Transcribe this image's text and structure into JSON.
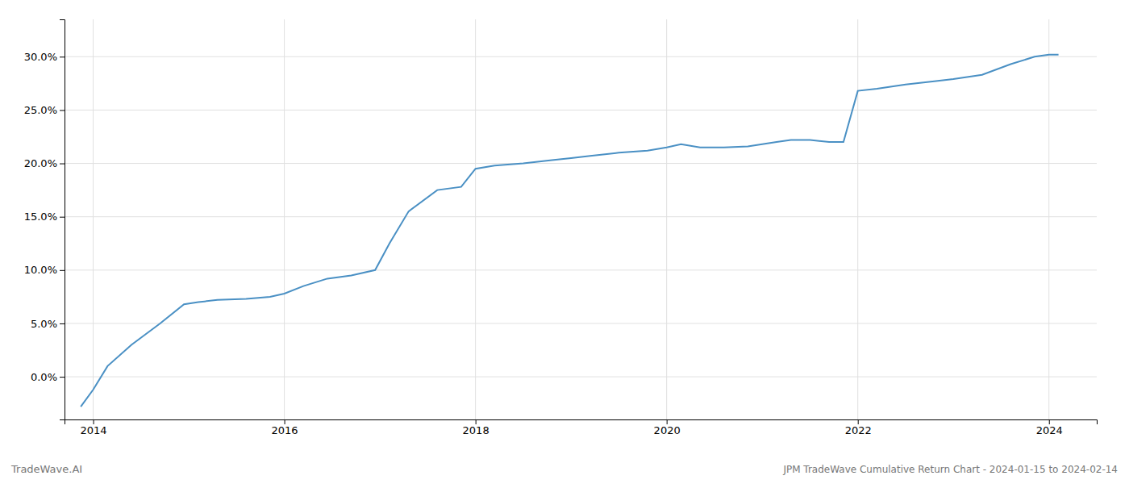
{
  "chart_data": {
    "type": "line",
    "title": "JPM TradeWave Cumulative Return Chart - 2024-01-15 to 2024-02-14",
    "annotations": [
      "TradeWave.AI"
    ],
    "x": [
      2013.87,
      2014.0,
      2014.15,
      2014.4,
      2014.7,
      2014.95,
      2015.1,
      2015.3,
      2015.6,
      2015.85,
      2016.0,
      2016.2,
      2016.45,
      2016.7,
      2016.95,
      2017.1,
      2017.3,
      2017.6,
      2017.85,
      2018.0,
      2018.2,
      2018.5,
      2018.8,
      2019.0,
      2019.2,
      2019.5,
      2019.8,
      2020.0,
      2020.15,
      2020.35,
      2020.6,
      2020.85,
      2021.0,
      2021.15,
      2021.3,
      2021.5,
      2021.7,
      2021.85,
      2022.0,
      2022.2,
      2022.5,
      2022.8,
      2023.0,
      2023.3,
      2023.6,
      2023.85,
      2024.0,
      2024.1
    ],
    "values": [
      -0.028,
      -0.012,
      0.01,
      0.03,
      0.05,
      0.068,
      0.07,
      0.072,
      0.073,
      0.075,
      0.078,
      0.085,
      0.092,
      0.095,
      0.1,
      0.125,
      0.155,
      0.175,
      0.178,
      0.195,
      0.198,
      0.2,
      0.203,
      0.205,
      0.207,
      0.21,
      0.212,
      0.215,
      0.218,
      0.215,
      0.215,
      0.216,
      0.218,
      0.22,
      0.222,
      0.222,
      0.22,
      0.22,
      0.268,
      0.27,
      0.274,
      0.277,
      0.279,
      0.283,
      0.293,
      0.3,
      0.302,
      0.302
    ],
    "color": "#4a90c4",
    "xlim": [
      2013.7,
      2024.5
    ],
    "ylim": [
      -0.04,
      0.335
    ],
    "xticks": [
      2014,
      2016,
      2018,
      2020,
      2022,
      2024
    ],
    "yticks": [
      {
        "value": 0.0,
        "label": "0.0%"
      },
      {
        "value": 0.05,
        "label": "5.0%"
      },
      {
        "value": 0.1,
        "label": "10.0%"
      },
      {
        "value": 0.15,
        "label": "15.0%"
      },
      {
        "value": 0.2,
        "label": "20.0%"
      },
      {
        "value": 0.25,
        "label": "25.0%"
      },
      {
        "value": 0.3,
        "label": "30.0%"
      }
    ],
    "grid": true
  }
}
